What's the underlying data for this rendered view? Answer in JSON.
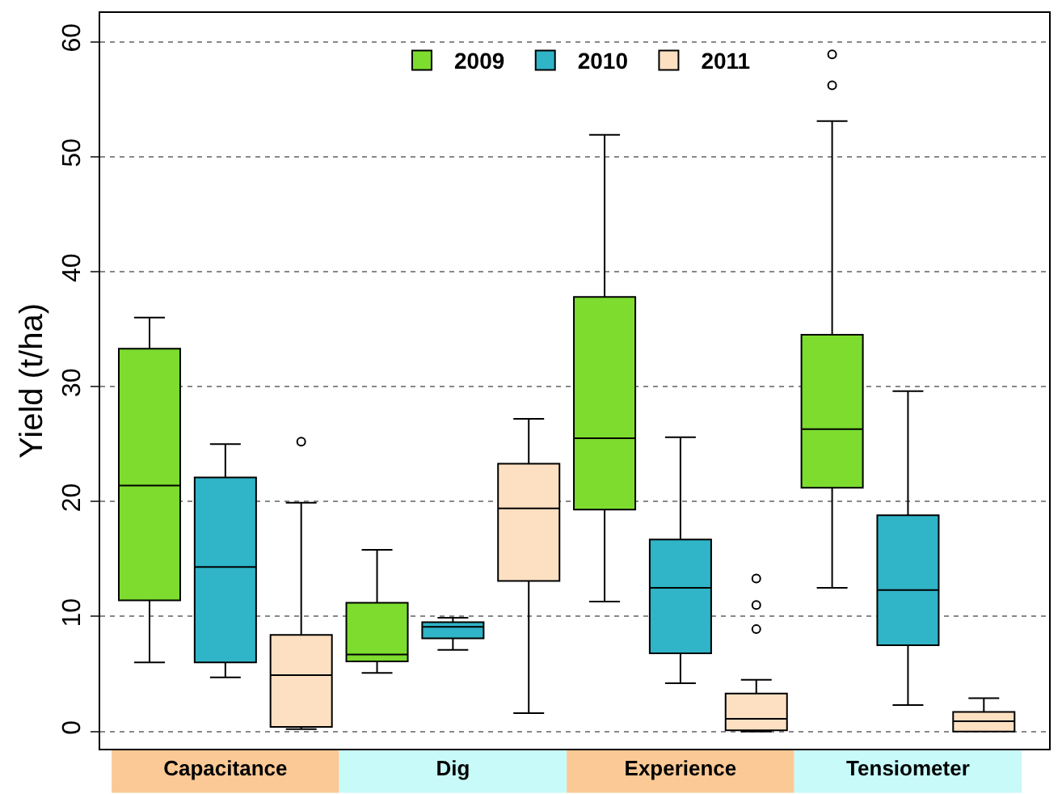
{
  "chart_data": {
    "type": "box",
    "ylabel": "Yield (t/ha)",
    "categories": [
      "Capacitance",
      "Dig",
      "Experience",
      "Tensiometer"
    ],
    "series": [
      {
        "name": "2009",
        "color": "#7ddc2e",
        "boxes": [
          {
            "low": 6,
            "q1": 11.4,
            "median": 21.4,
            "q3": 33.3,
            "high": 36
          },
          {
            "low": 5.1,
            "q1": 6.1,
            "median": 6.7,
            "q3": 11.2,
            "high": 15.8
          },
          {
            "low": 11.3,
            "q1": 19.3,
            "median": 25.5,
            "q3": 37.8,
            "high": 51.9
          },
          {
            "low": 12.5,
            "q1": 21.2,
            "median": 26.3,
            "q3": 34.5,
            "high": 53.1,
            "outliers": [
              56.2,
              58.9
            ]
          }
        ]
      },
      {
        "name": "2010",
        "color": "#2fb4c8",
        "boxes": [
          {
            "low": 4.7,
            "q1": 6,
            "median": 14.3,
            "q3": 22.1,
            "high": 25
          },
          {
            "low": 7.1,
            "q1": 8.1,
            "median": 9.1,
            "q3": 9.5,
            "high": 9.9
          },
          {
            "low": 4.2,
            "q1": 6.8,
            "median": 12.5,
            "q3": 16.7,
            "high": 25.6
          },
          {
            "low": 2.3,
            "q1": 7.5,
            "median": 12.3,
            "q3": 18.8,
            "high": 29.6
          }
        ]
      },
      {
        "name": "2011",
        "color": "#fde0c2",
        "boxes": [
          {
            "low": 0.2,
            "q1": 0.4,
            "median": 4.9,
            "q3": 8.4,
            "high": 19.9,
            "outliers": [
              25.2
            ]
          },
          {
            "low": 1.6,
            "q1": 13.1,
            "median": 19.4,
            "q3": 23.3,
            "high": 27.2
          },
          {
            "low": 0,
            "q1": 0.1,
            "median": 1.1,
            "q3": 3.3,
            "high": 4.5,
            "outliers": [
              8.9,
              11,
              13.3
            ]
          },
          {
            "low": 0,
            "q1": 0,
            "median": 0.9,
            "q3": 1.7,
            "high": 2.9
          }
        ]
      }
    ],
    "ylim": [
      -1.5,
      62.5
    ],
    "yticks": [
      0,
      10,
      20,
      30,
      40,
      50,
      60
    ],
    "grid": "y",
    "legend": "top"
  }
}
